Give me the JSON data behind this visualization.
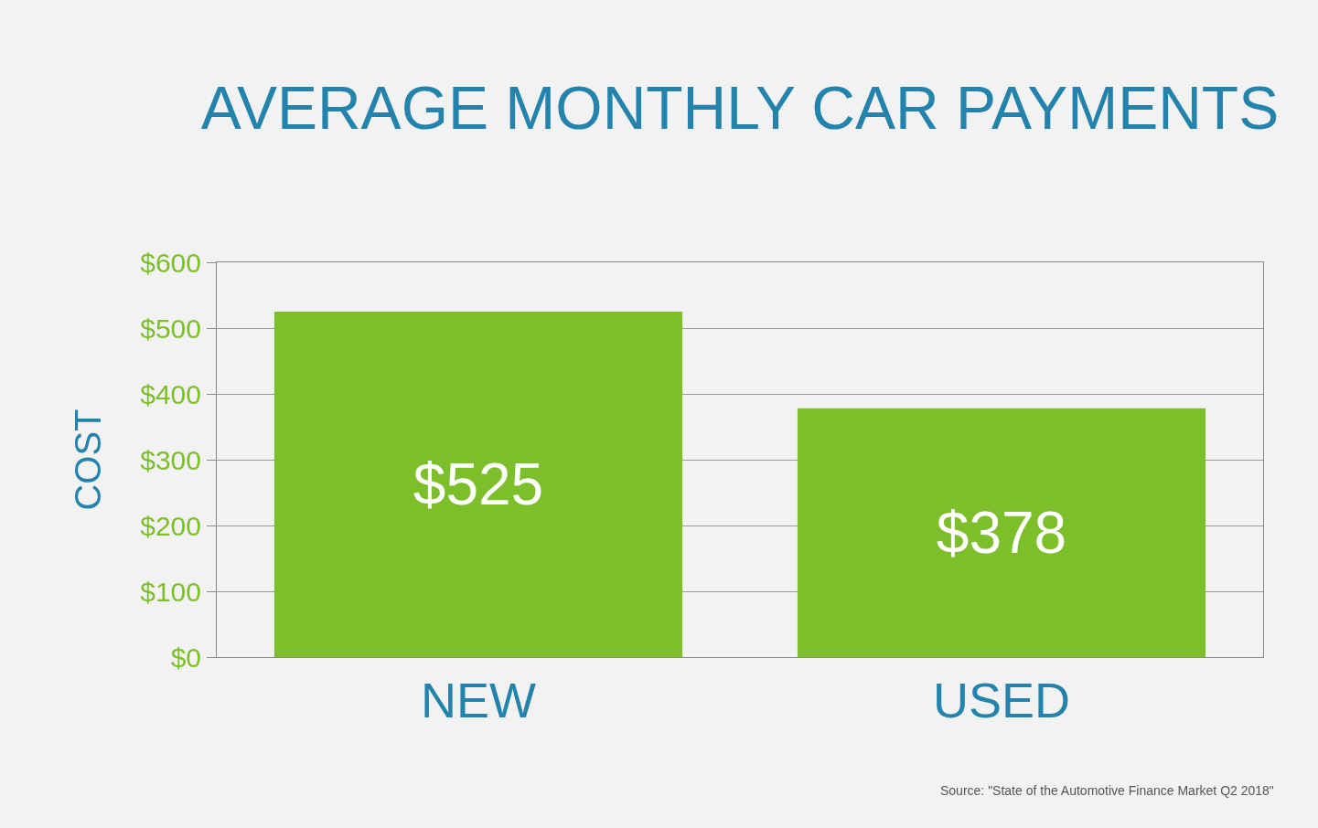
{
  "chart_data": {
    "type": "bar",
    "title": "AVERAGE MONTHLY CAR PAYMENTS",
    "ylabel": "COST",
    "categories": [
      "NEW",
      "USED"
    ],
    "values": [
      525,
      378
    ],
    "value_labels": [
      "$525",
      "$378"
    ],
    "color": "#7cbf2b",
    "ylim": [
      0,
      600
    ],
    "yticks": [
      {
        "value": 0,
        "label": "$0"
      },
      {
        "value": 100,
        "label": "$100"
      },
      {
        "value": 200,
        "label": "$200"
      },
      {
        "value": 300,
        "label": "$300"
      },
      {
        "value": 400,
        "label": "$400"
      },
      {
        "value": 500,
        "label": "$500"
      },
      {
        "value": 600,
        "label": "$600"
      }
    ],
    "grid": "y",
    "legend": false,
    "annotations": [
      "Source: \"State of the Automotive Finance Market Q2 2018\""
    ]
  }
}
